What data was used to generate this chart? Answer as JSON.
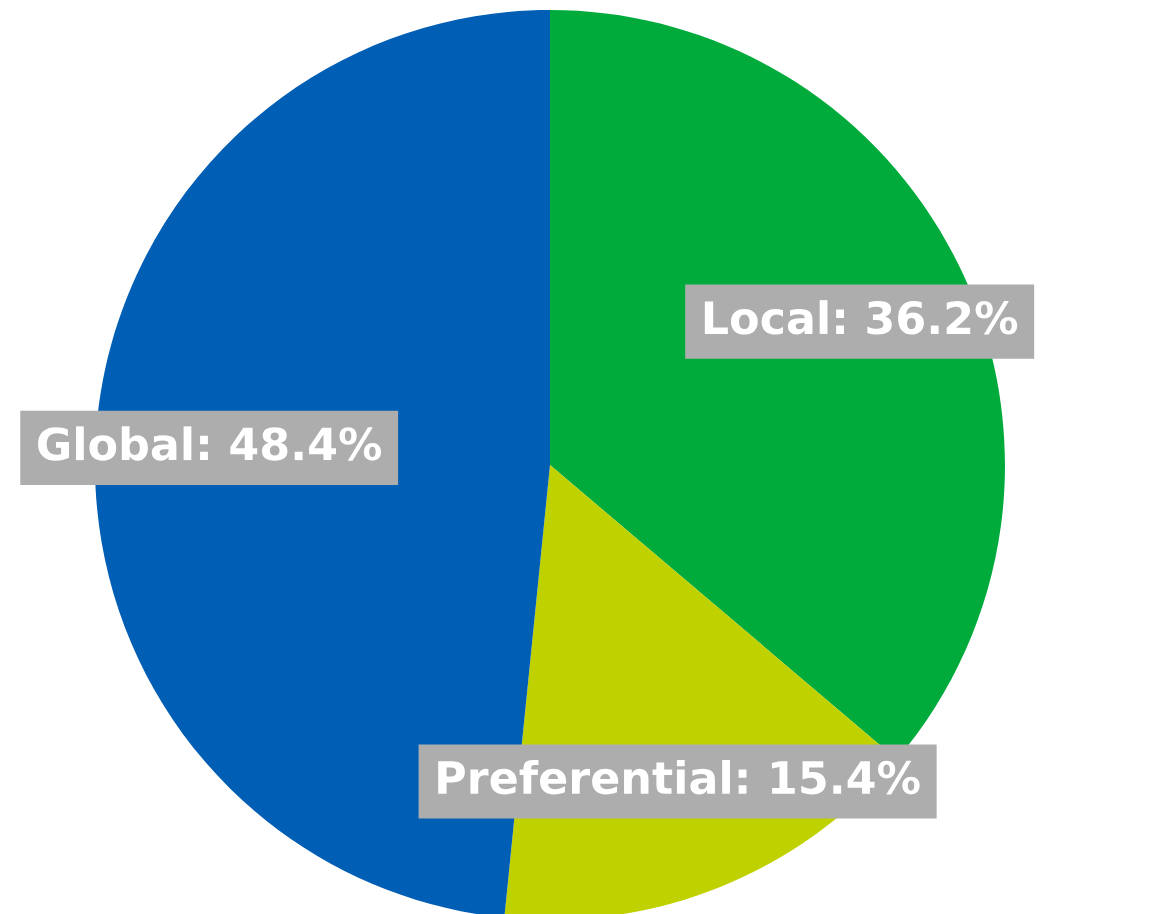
{
  "chart_data": {
    "type": "pie",
    "categories": [
      "Local",
      "Preferential",
      "Global"
    ],
    "values": [
      36.2,
      15.4,
      48.4
    ],
    "colors": [
      "#00ab3c",
      "#c0d100",
      "#005eb4"
    ],
    "value_labels": [
      "36.2%",
      "15.4%",
      "48.4%"
    ]
  }
}
